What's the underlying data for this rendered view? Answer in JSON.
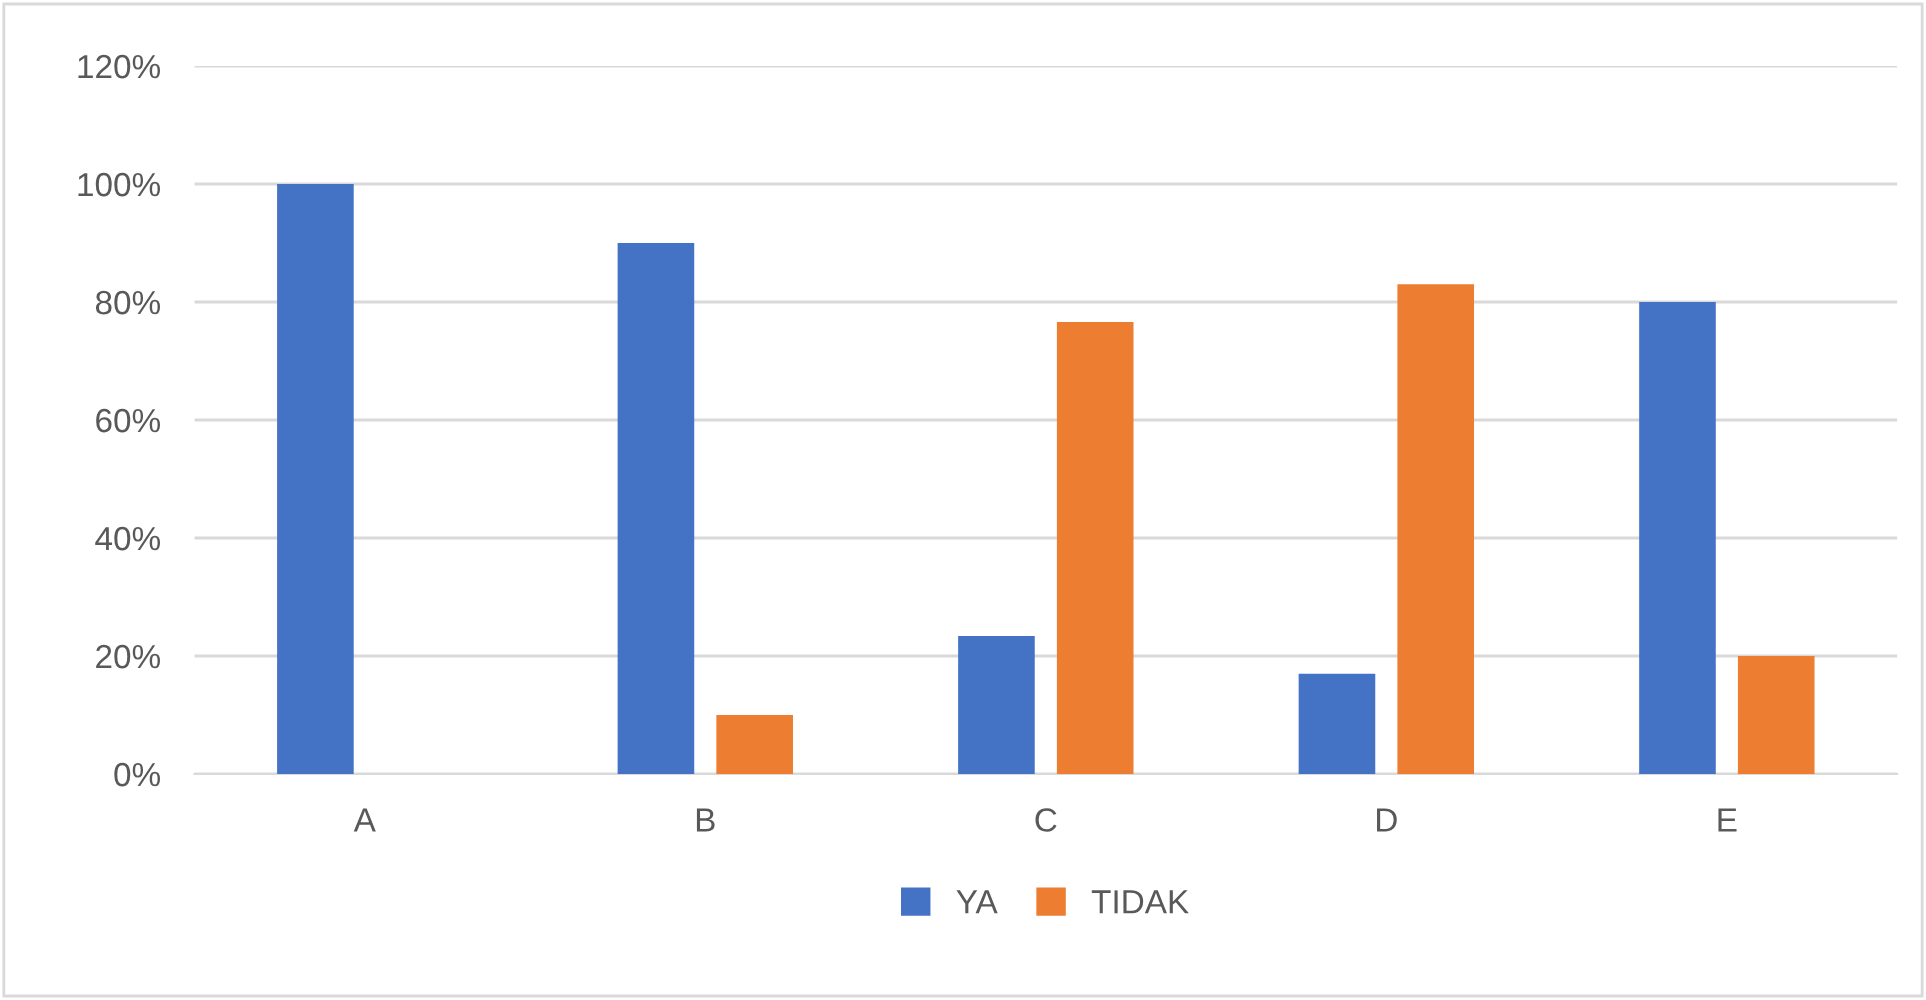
{
  "chart_data": {
    "type": "bar",
    "categories": [
      "A",
      "B",
      "C",
      "D",
      "E"
    ],
    "series": [
      {
        "name": "YA",
        "color": "#4472c4",
        "values": [
          100,
          90,
          23.4,
          17,
          80
        ]
      },
      {
        "name": "TIDAK",
        "color": "#ed7d31",
        "values": [
          0,
          10,
          76.6,
          83,
          20
        ]
      }
    ],
    "ylim": [
      0,
      120
    ],
    "yticks": [
      {
        "value": 0,
        "label": "0%"
      },
      {
        "value": 20,
        "label": "20%"
      },
      {
        "value": 40,
        "label": "40%"
      },
      {
        "value": 60,
        "label": "60%"
      },
      {
        "value": 80,
        "label": "80%"
      },
      {
        "value": 100,
        "label": "100%"
      },
      {
        "value": 120,
        "label": "120%"
      }
    ],
    "grid": "y",
    "legend": "bottom"
  }
}
